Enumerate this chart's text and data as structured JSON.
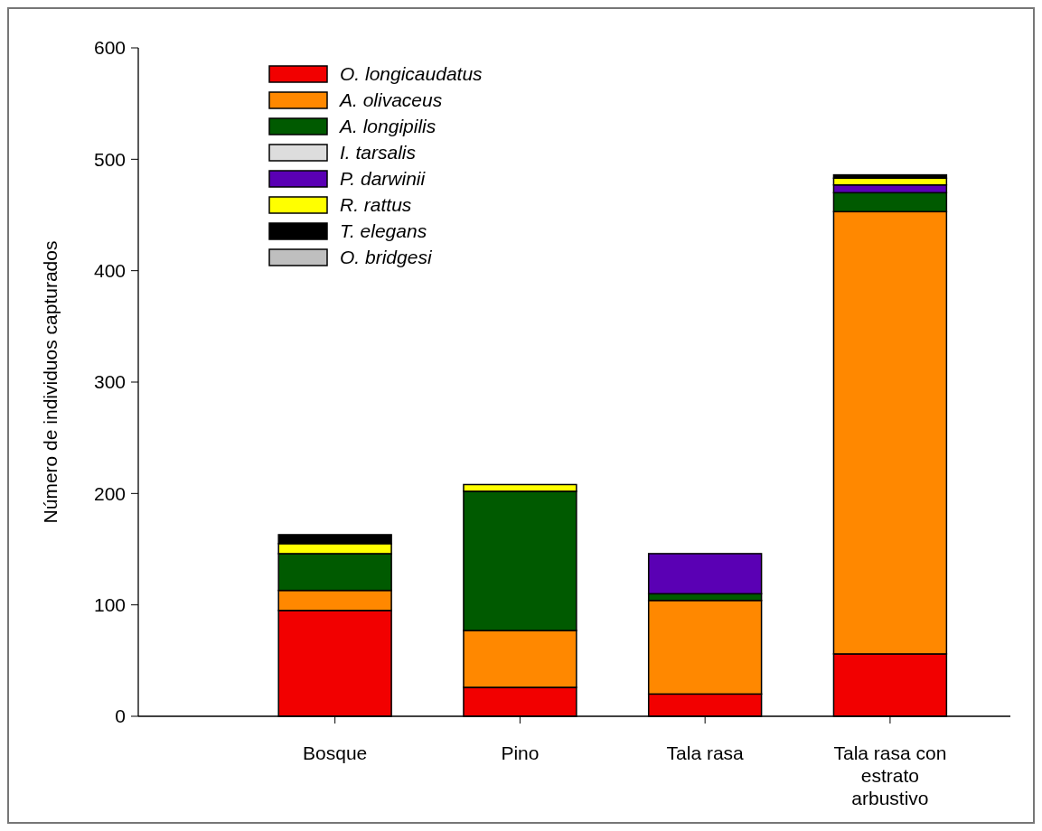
{
  "chart_data": {
    "type": "bar",
    "stacked": true,
    "ylabel": "Número de individuos capturados",
    "categories": [
      "Bosque",
      "Pino",
      "Tala rasa",
      "Tala rasa con estrato arbustivo"
    ],
    "ylim": [
      0,
      600
    ],
    "yticks": [
      0,
      100,
      200,
      300,
      400,
      500,
      600
    ],
    "grid": false,
    "legend": "top left",
    "series": [
      {
        "name": "O. longicaudatus",
        "color": "#f20000",
        "values": [
          95,
          26,
          20,
          56
        ]
      },
      {
        "name": "A. olivaceus",
        "color": "#ff8800",
        "values": [
          18,
          51,
          84,
          397
        ]
      },
      {
        "name": "A. longipilis",
        "color": "#005a00",
        "values": [
          33,
          125,
          6,
          17
        ]
      },
      {
        "name": "I. tarsalis",
        "color": "#dddddd",
        "values": [
          0,
          0,
          0,
          0
        ]
      },
      {
        "name": "P. darwinii",
        "color": "#5a00b4",
        "values": [
          0,
          0,
          36,
          7
        ]
      },
      {
        "name": "R. rattus",
        "color": "#ffff00",
        "values": [
          9,
          6,
          0,
          6
        ]
      },
      {
        "name": "T. elegans",
        "color": "#000000",
        "values": [
          8,
          0,
          0,
          3
        ]
      },
      {
        "name": "O. bridgesi",
        "color": "#bfbfbf",
        "values": [
          0,
          0,
          0,
          0
        ]
      }
    ]
  }
}
